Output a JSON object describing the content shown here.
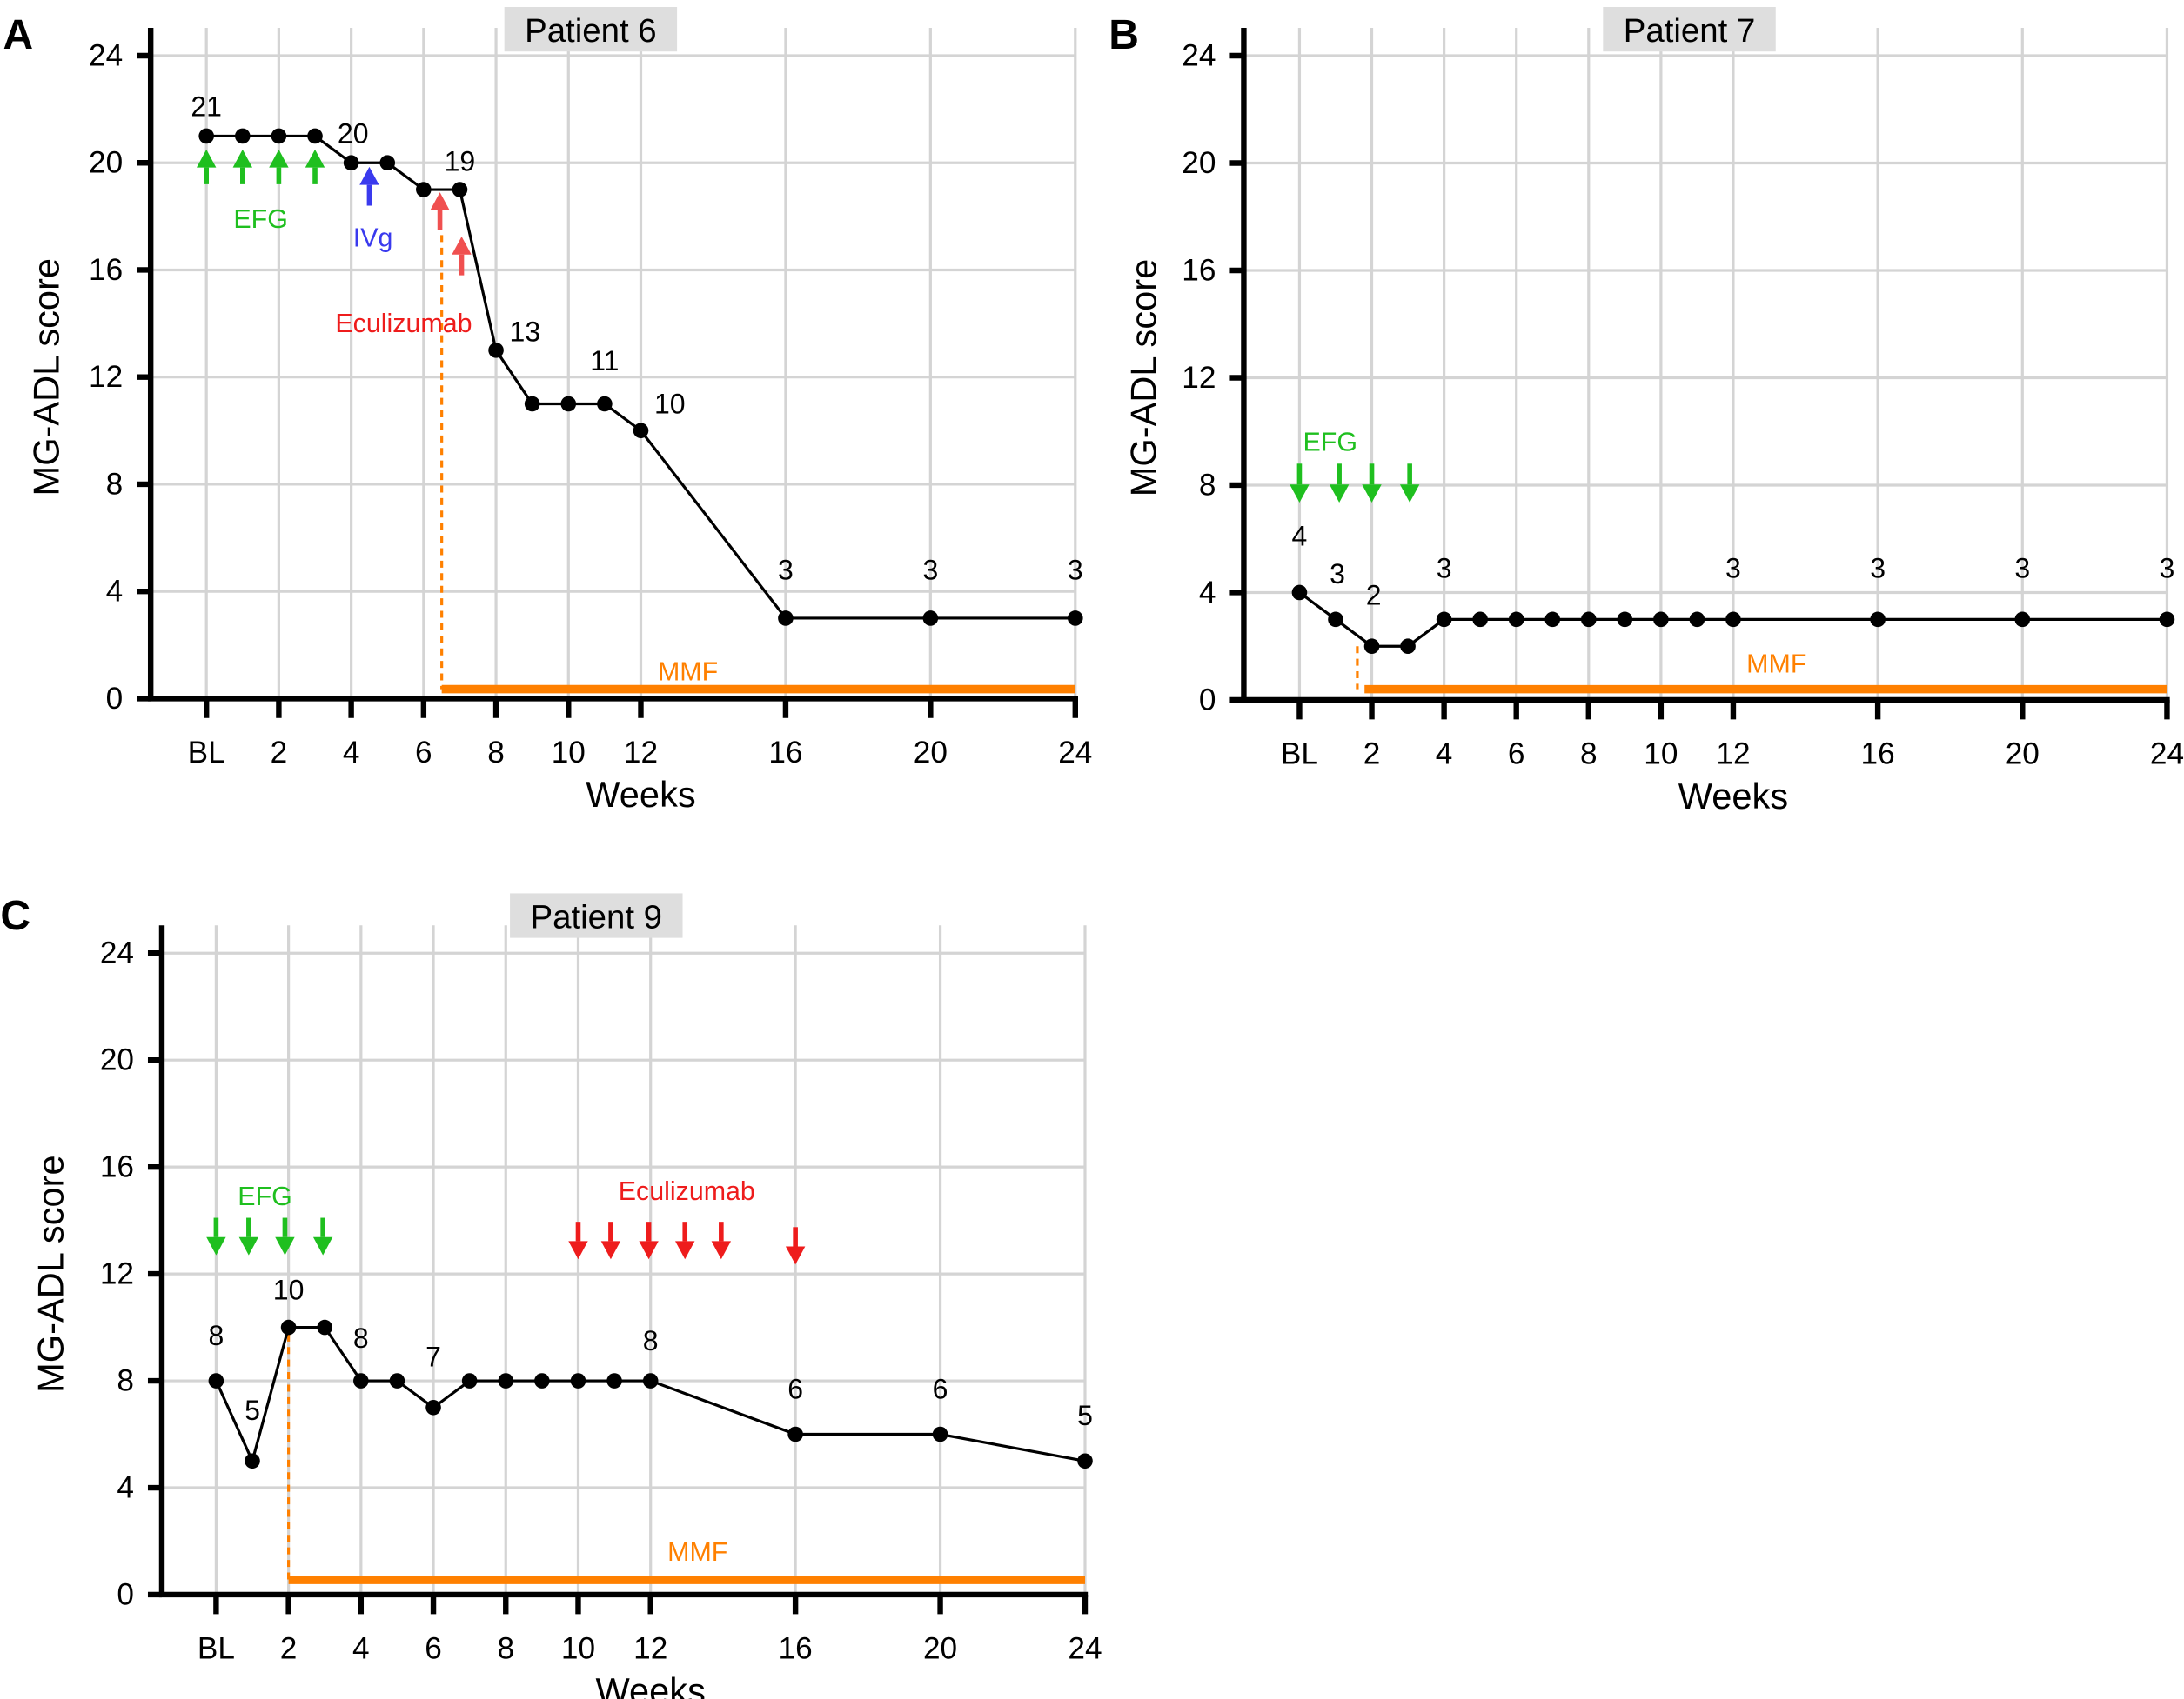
{
  "colors": {
    "efg": "#1fbf1f",
    "ivg": "#3a3aee",
    "eculizumab": "#ee1c1c",
    "eculizumab_light": "#f05050",
    "mmf": "#ff8000"
  },
  "chart_data": [
    {
      "type": "line",
      "panel_letter": "A",
      "title": "Patient 6",
      "xlabel": "Weeks",
      "ylabel": "MG-ADL score",
      "xlim": [
        0,
        24
      ],
      "ylim": [
        0,
        24
      ],
      "yticks": [
        0,
        4,
        8,
        12,
        16,
        20,
        24
      ],
      "xticks": [
        {
          "week": 0,
          "label": "BL"
        },
        {
          "week": 2,
          "label": "2"
        },
        {
          "week": 4,
          "label": "4"
        },
        {
          "week": 6,
          "label": "6"
        },
        {
          "week": 8,
          "label": "8"
        },
        {
          "week": 10,
          "label": "10"
        },
        {
          "week": 12,
          "label": "12"
        },
        {
          "week": 16,
          "label": "16"
        },
        {
          "week": 20,
          "label": "20"
        },
        {
          "week": 24,
          "label": "24"
        }
      ],
      "x": [
        0,
        1,
        2,
        3,
        4,
        5,
        6,
        7,
        8,
        9,
        10,
        11,
        12,
        16,
        20,
        24
      ],
      "y": [
        21,
        21,
        21,
        21,
        20,
        20,
        19,
        19,
        13,
        11,
        11,
        11,
        10,
        3,
        3,
        3
      ],
      "point_labels": [
        {
          "text": "21",
          "x": 0,
          "y": 22.1
        },
        {
          "text": "20",
          "x": 4.05,
          "y": 21.1
        },
        {
          "text": "19",
          "x": 7,
          "y": 20.05
        },
        {
          "text": "13",
          "x": 8.8,
          "y": 13.7
        },
        {
          "text": "11",
          "x": 11,
          "y": 12.6
        },
        {
          "text": "10",
          "x": 12.8,
          "y": 11.0
        },
        {
          "text": "3",
          "x": 16,
          "y": 4.8
        },
        {
          "text": "3",
          "x": 20,
          "y": 4.8
        },
        {
          "text": "3",
          "x": 24,
          "y": 4.8
        }
      ],
      "arrows": [
        {
          "drug": "efg",
          "x": 0,
          "from": 19.2,
          "to": 20.5
        },
        {
          "drug": "efg",
          "x": 1,
          "from": 19.2,
          "to": 20.5
        },
        {
          "drug": "efg",
          "x": 2,
          "from": 19.2,
          "to": 20.5
        },
        {
          "drug": "efg",
          "x": 3,
          "from": 19.2,
          "to": 20.5
        },
        {
          "drug": "ivg",
          "x": 4.5,
          "from": 18.4,
          "to": 19.85
        },
        {
          "drug": "eculizumab_light",
          "x": 6.45,
          "from": 17.5,
          "to": 18.9
        },
        {
          "drug": "eculizumab_light",
          "x": 7.05,
          "from": 15.8,
          "to": 17.25
        }
      ],
      "annotations": [
        {
          "text": "EFG",
          "drug": "efg",
          "x": 1.5,
          "y": 17.9
        },
        {
          "text": "IVg",
          "drug": "ivg",
          "x": 4.6,
          "y": 17.2
        },
        {
          "text": "Eculizumab",
          "drug": "eculizumab",
          "x": 5.45,
          "y": 14.0
        },
        {
          "text": "MMF",
          "drug": "mmf",
          "x": 13.3,
          "y": 1.0
        }
      ],
      "mmf": {
        "dash_x": 6.5,
        "dash_top": 17.3,
        "start": 6.5,
        "end": 24,
        "level": 0.35
      }
    },
    {
      "type": "line",
      "panel_letter": "B",
      "title": "Patient 7",
      "xlabel": "Weeks",
      "ylabel": "MG-ADL score",
      "xlim": [
        0,
        24
      ],
      "ylim": [
        0,
        24
      ],
      "yticks": [
        0,
        4,
        8,
        12,
        16,
        20,
        24
      ],
      "xticks": [
        {
          "week": 0,
          "label": "BL"
        },
        {
          "week": 2,
          "label": "2"
        },
        {
          "week": 4,
          "label": "4"
        },
        {
          "week": 6,
          "label": "6"
        },
        {
          "week": 8,
          "label": "8"
        },
        {
          "week": 10,
          "label": "10"
        },
        {
          "week": 12,
          "label": "12"
        },
        {
          "week": 16,
          "label": "16"
        },
        {
          "week": 20,
          "label": "20"
        },
        {
          "week": 24,
          "label": "24"
        }
      ],
      "x": [
        0,
        1,
        2,
        3,
        4,
        5,
        6,
        7,
        8,
        9,
        10,
        11,
        12,
        16,
        20,
        24
      ],
      "y": [
        4,
        3,
        2,
        2,
        3,
        3,
        3,
        3,
        3,
        3,
        3,
        3,
        3,
        3,
        3,
        3
      ],
      "point_labels": [
        {
          "text": "4",
          "x": 0,
          "y": 6.1
        },
        {
          "text": "3",
          "x": 1.05,
          "y": 4.7
        },
        {
          "text": "2",
          "x": 2.05,
          "y": 3.9
        },
        {
          "text": "3",
          "x": 4,
          "y": 4.9
        },
        {
          "text": "3",
          "x": 12,
          "y": 4.9
        },
        {
          "text": "3",
          "x": 16,
          "y": 4.9
        },
        {
          "text": "3",
          "x": 20,
          "y": 4.9
        },
        {
          "text": "3",
          "x": 24,
          "y": 4.9
        }
      ],
      "arrows": [
        {
          "drug": "efg",
          "x": 0,
          "from": 8.8,
          "to": 7.35
        },
        {
          "drug": "efg",
          "x": 1.1,
          "from": 8.8,
          "to": 7.35
        },
        {
          "drug": "efg",
          "x": 2,
          "from": 8.8,
          "to": 7.35
        },
        {
          "drug": "efg",
          "x": 3.05,
          "from": 8.8,
          "to": 7.35
        }
      ],
      "annotations": [
        {
          "text": "EFG",
          "drug": "efg",
          "x": 0.85,
          "y": 9.6
        },
        {
          "text": "MMF",
          "drug": "mmf",
          "x": 13.2,
          "y": 1.35
        }
      ],
      "mmf": {
        "dash_x": 1.6,
        "dash_top": 2.0,
        "start": 1.8,
        "end": 24,
        "level": 0.4
      }
    },
    {
      "type": "line",
      "panel_letter": "C",
      "title": "Patient 9",
      "xlabel": "Weeks",
      "ylabel": "MG-ADL score",
      "xlim": [
        0,
        24
      ],
      "ylim": [
        0,
        24
      ],
      "yticks": [
        0,
        4,
        8,
        12,
        16,
        20,
        24
      ],
      "xticks": [
        {
          "week": 0,
          "label": "BL"
        },
        {
          "week": 2,
          "label": "2"
        },
        {
          "week": 4,
          "label": "4"
        },
        {
          "week": 6,
          "label": "6"
        },
        {
          "week": 8,
          "label": "8"
        },
        {
          "week": 10,
          "label": "10"
        },
        {
          "week": 12,
          "label": "12"
        },
        {
          "week": 16,
          "label": "16"
        },
        {
          "week": 20,
          "label": "20"
        },
        {
          "week": 24,
          "label": "24"
        }
      ],
      "x": [
        0,
        1,
        2,
        3,
        4,
        5,
        6,
        7,
        8,
        9,
        10,
        11,
        12,
        16,
        20,
        24
      ],
      "y": [
        8,
        5,
        10,
        10,
        8,
        8,
        7,
        8,
        8,
        8,
        8,
        8,
        8,
        6,
        6,
        5
      ],
      "point_labels": [
        {
          "text": "8",
          "x": 0,
          "y": 9.7
        },
        {
          "text": "5",
          "x": 1,
          "y": 6.9
        },
        {
          "text": "10",
          "x": 2,
          "y": 11.4
        },
        {
          "text": "8",
          "x": 4,
          "y": 9.6
        },
        {
          "text": "7",
          "x": 6,
          "y": 8.9
        },
        {
          "text": "8",
          "x": 12,
          "y": 9.5
        },
        {
          "text": "6",
          "x": 16,
          "y": 7.7
        },
        {
          "text": "6",
          "x": 20,
          "y": 7.7
        },
        {
          "text": "5",
          "x": 24,
          "y": 6.7
        }
      ],
      "arrows": [
        {
          "drug": "efg",
          "x": 0,
          "from": 14.1,
          "to": 12.7
        },
        {
          "drug": "efg",
          "x": 0.9,
          "from": 14.1,
          "to": 12.7
        },
        {
          "drug": "efg",
          "x": 1.9,
          "from": 14.1,
          "to": 12.7
        },
        {
          "drug": "efg",
          "x": 2.95,
          "from": 14.1,
          "to": 12.7
        },
        {
          "drug": "eculizumab",
          "x": 10,
          "from": 13.95,
          "to": 12.55
        },
        {
          "drug": "eculizumab",
          "x": 10.9,
          "from": 13.95,
          "to": 12.55
        },
        {
          "drug": "eculizumab",
          "x": 11.95,
          "from": 13.95,
          "to": 12.55
        },
        {
          "drug": "eculizumab",
          "x": 12.95,
          "from": 13.95,
          "to": 12.55
        },
        {
          "drug": "eculizumab",
          "x": 13.95,
          "from": 13.95,
          "to": 12.55
        },
        {
          "drug": "eculizumab",
          "x": 16,
          "from": 13.75,
          "to": 12.35
        }
      ],
      "annotations": [
        {
          "text": "EFG",
          "drug": "efg",
          "x": 1.35,
          "y": 14.9
        },
        {
          "text": "Eculizumab",
          "drug": "eculizumab",
          "x": 13.0,
          "y": 15.1
        },
        {
          "text": "MMF",
          "drug": "mmf",
          "x": 13.3,
          "y": 1.6
        }
      ],
      "mmf": {
        "dash_x": 2.0,
        "dash_top": 10.2,
        "start": 2.0,
        "end": 24,
        "level": 0.55
      }
    }
  ]
}
